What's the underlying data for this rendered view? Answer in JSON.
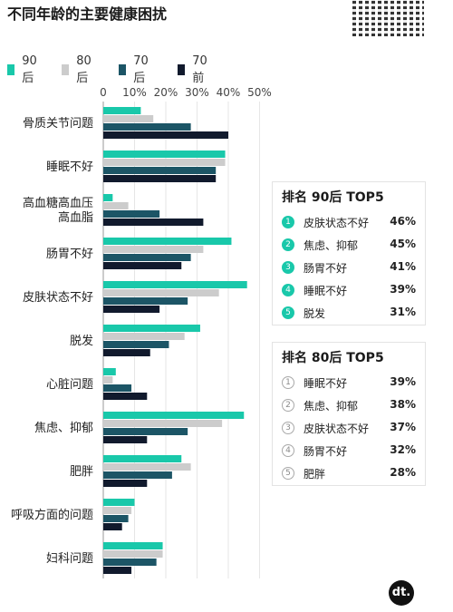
{
  "page": {
    "title": "不同年龄的主要健康困扰"
  },
  "logo": {
    "text": "dt."
  },
  "chart_data": {
    "type": "bar",
    "orientation": "horizontal",
    "title": "不同年龄的主要健康困扰",
    "xlim": [
      0,
      50
    ],
    "x_ticks": [
      "0",
      "10%",
      "20%",
      "30%",
      "40%",
      "50%"
    ],
    "grid": true,
    "legend_position": "top",
    "categories": [
      "骨质关节问题",
      "睡眠不好",
      "高血糖高血压\n高血脂",
      "肠胃不好",
      "皮肤状态不好",
      "脱发",
      "心脏问题",
      "焦虑、抑郁",
      "肥胖",
      "呼吸方面的问题",
      "妇科问题"
    ],
    "series": [
      {
        "name": "90后",
        "color": "#19c8aa",
        "values": [
          12,
          39,
          3,
          41,
          46,
          31,
          4,
          45,
          25,
          10,
          19
        ]
      },
      {
        "name": "80后",
        "color": "#cccccc",
        "values": [
          16,
          39,
          8,
          32,
          37,
          26,
          3,
          38,
          28,
          9,
          19
        ]
      },
      {
        "name": "70后",
        "color": "#1c5566",
        "values": [
          28,
          36,
          18,
          28,
          27,
          21,
          9,
          27,
          22,
          8,
          17
        ]
      },
      {
        "name": "70前",
        "color": "#111a2d",
        "values": [
          40,
          36,
          32,
          25,
          18,
          15,
          14,
          14,
          14,
          6,
          9
        ]
      }
    ]
  },
  "top5": [
    {
      "title": "排名 90后 TOP5",
      "style": "teal",
      "items": [
        {
          "rank": "1",
          "name": "皮肤状态不好",
          "pct": "46%"
        },
        {
          "rank": "2",
          "name": "焦虑、抑郁",
          "pct": "45%"
        },
        {
          "rank": "3",
          "name": "肠胃不好",
          "pct": "41%"
        },
        {
          "rank": "4",
          "name": "睡眠不好",
          "pct": "39%"
        },
        {
          "rank": "5",
          "name": "脱发",
          "pct": "31%"
        }
      ]
    },
    {
      "title": "排名 80后 TOP5",
      "style": "gray",
      "items": [
        {
          "rank": "1",
          "name": "睡眠不好",
          "pct": "39%"
        },
        {
          "rank": "2",
          "name": "焦虑、抑郁",
          "pct": "38%"
        },
        {
          "rank": "3",
          "name": "皮肤状态不好",
          "pct": "37%"
        },
        {
          "rank": "4",
          "name": "肠胃不好",
          "pct": "32%"
        },
        {
          "rank": "5",
          "name": "肥胖",
          "pct": "28%"
        }
      ]
    }
  ]
}
